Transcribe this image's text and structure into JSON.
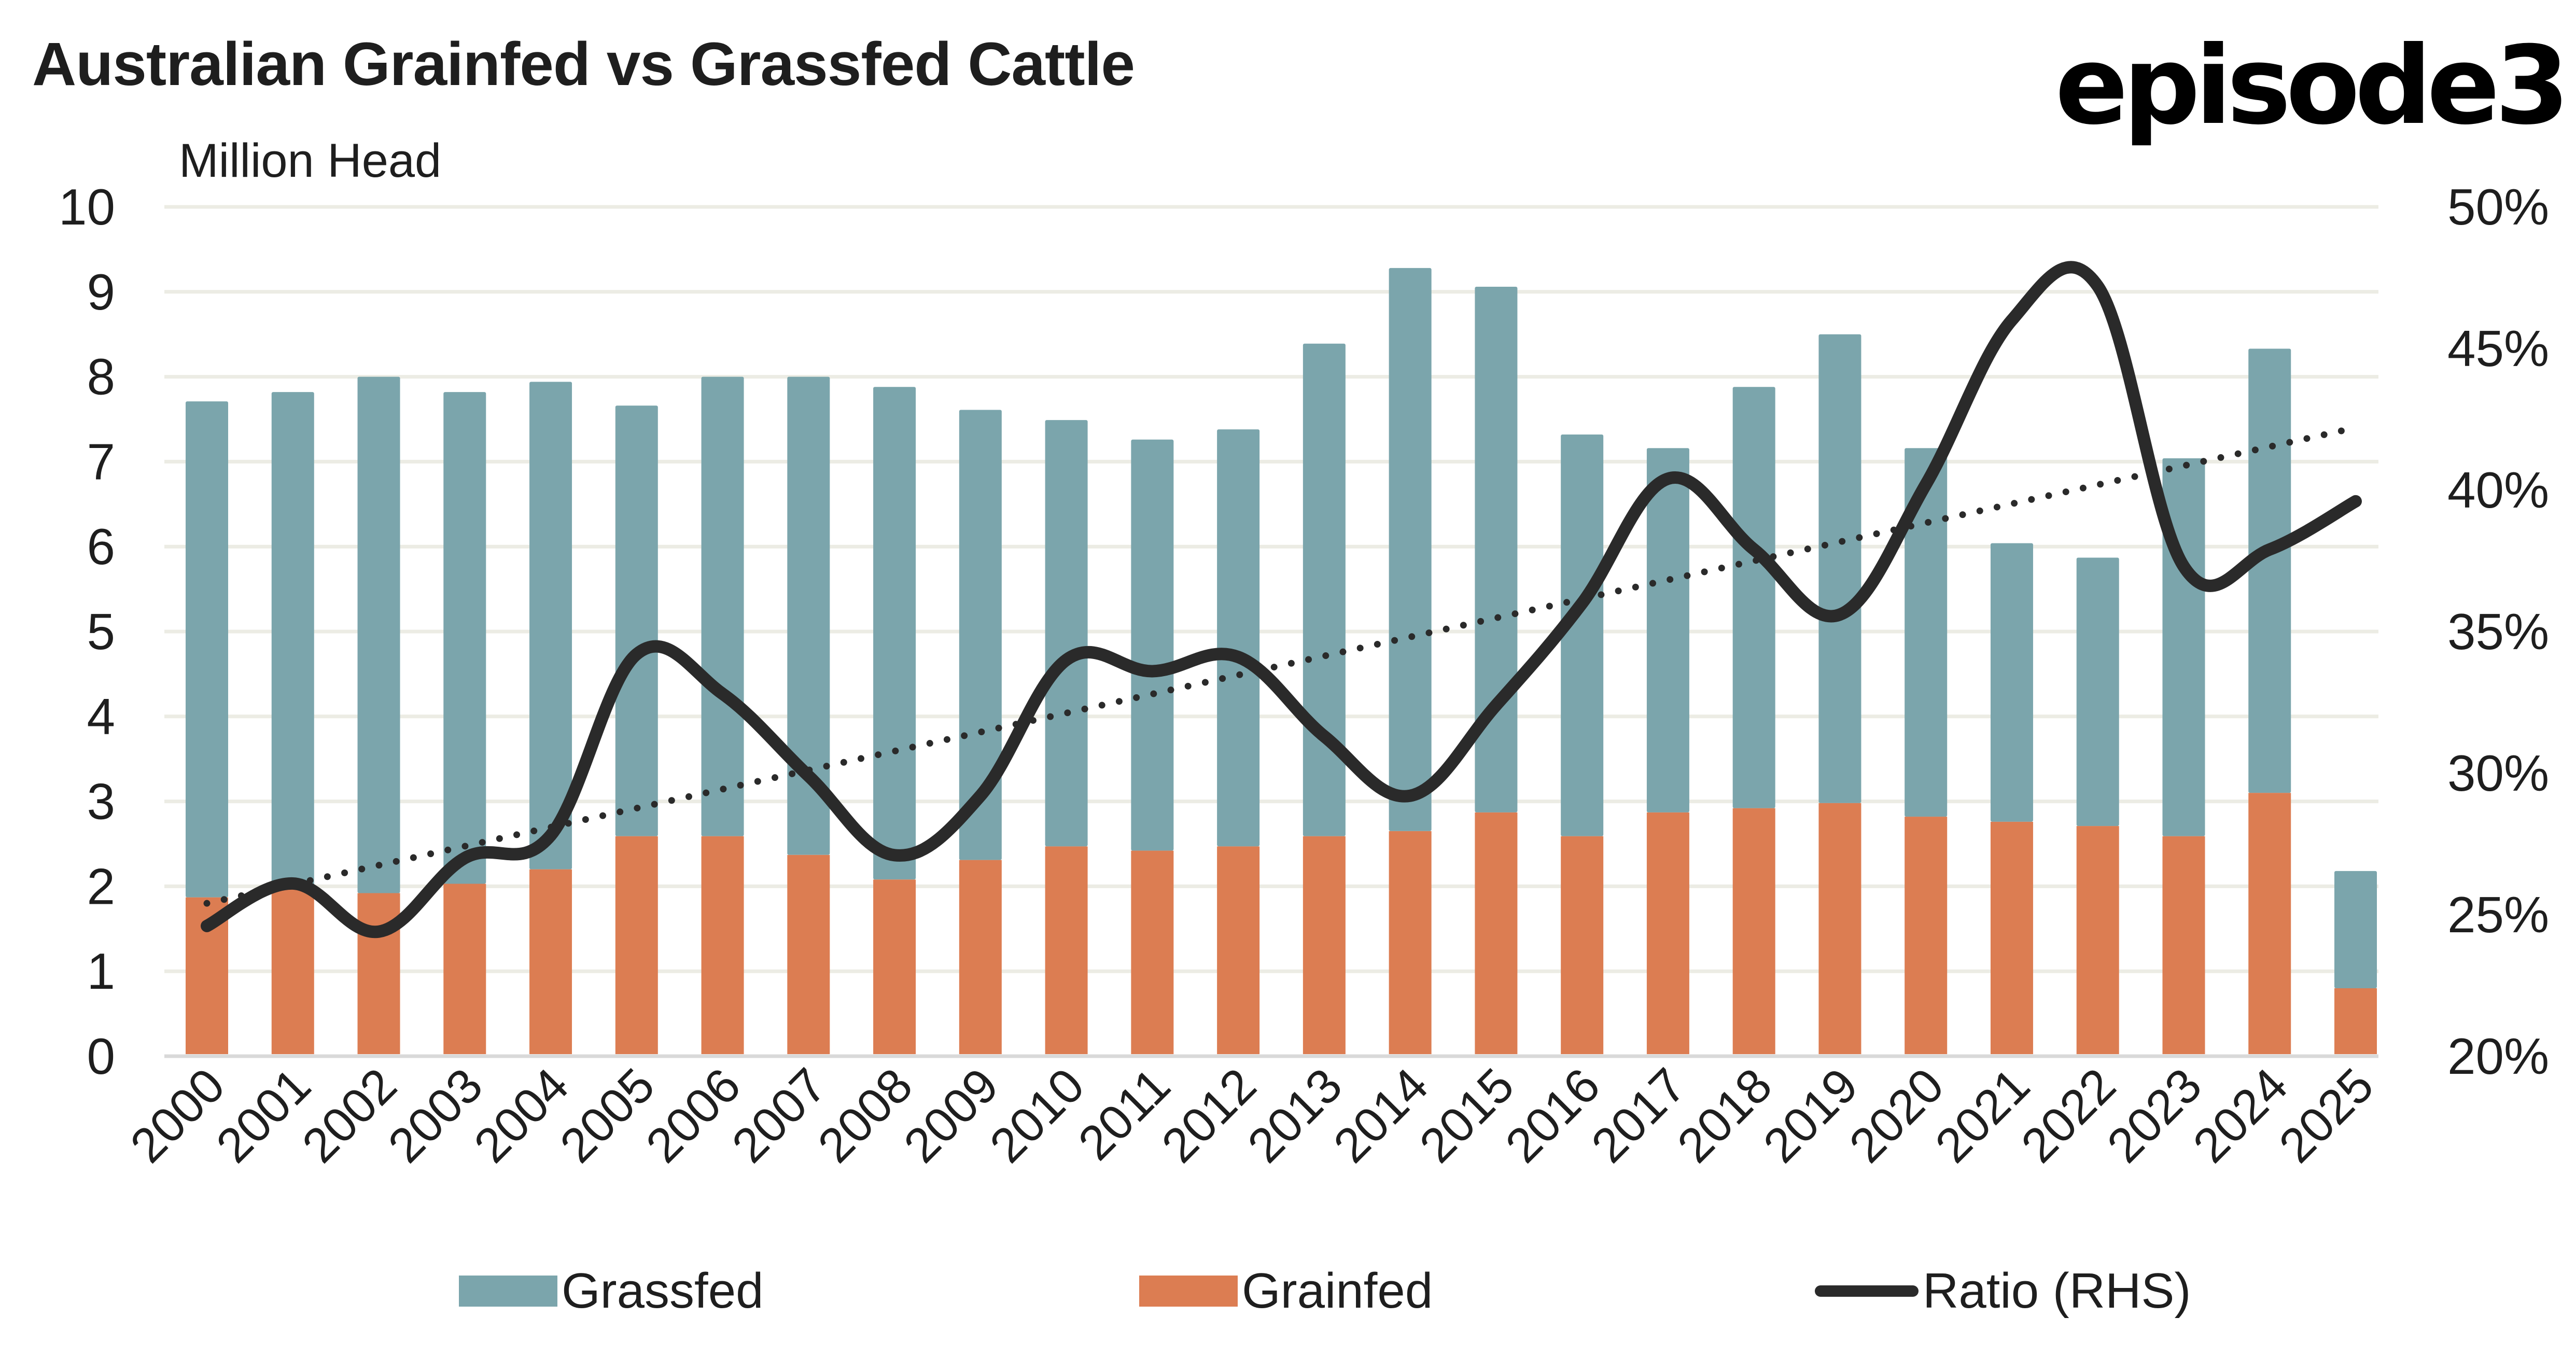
{
  "header": {
    "title": "Australian Grainfed vs Grassfed Cattle",
    "logo": "episode3",
    "unit_label": "Million Head"
  },
  "legend": {
    "grassfed": "Grassfed",
    "grainfed": "Grainfed",
    "ratio": "Ratio (RHS)"
  },
  "colors": {
    "grassfed": "#7BA5AC",
    "grainfed": "#DC7D52",
    "ratio": "#2A2A2A",
    "trend": "#2A2A2A",
    "grid": "#ECECE4",
    "axis": "#D9D9D9"
  },
  "chart_data": {
    "type": "bar",
    "subtype": "stacked-bar-with-line-secondary-axis",
    "title": "Australian Grainfed vs Grassfed Cattle",
    "xlabel": "",
    "ylabel": "Million Head",
    "y2label": "Ratio (RHS)",
    "ylim": [
      0,
      10
    ],
    "y2lim": [
      20,
      50
    ],
    "yticks": [
      "0",
      "1",
      "2",
      "3",
      "4",
      "5",
      "6",
      "7",
      "8",
      "9",
      "10"
    ],
    "y2ticks": [
      "20%",
      "25%",
      "30%",
      "35%",
      "40%",
      "45%",
      "50%"
    ],
    "grid": true,
    "legend_position": "bottom",
    "categories": [
      "2000",
      "2001",
      "2002",
      "2003",
      "2004",
      "2005",
      "2006",
      "2007",
      "2008",
      "2009",
      "2010",
      "2011",
      "2012",
      "2013",
      "2014",
      "2015",
      "2016",
      "2017",
      "2018",
      "2019",
      "2020",
      "2021",
      "2022",
      "2023",
      "2024",
      "2025"
    ],
    "series": [
      {
        "name": "Grainfed",
        "type": "bar",
        "axis": "left",
        "values": [
          1.87,
          1.98,
          1.92,
          2.03,
          2.2,
          2.59,
          2.59,
          2.37,
          2.08,
          2.31,
          2.47,
          2.42,
          2.47,
          2.59,
          2.65,
          2.87,
          2.59,
          2.87,
          2.92,
          2.98,
          2.82,
          2.76,
          2.71,
          2.59,
          3.1,
          0.8
        ]
      },
      {
        "name": "Grassfed",
        "type": "bar",
        "axis": "left",
        "stack_totals": [
          7.71,
          7.82,
          8.0,
          7.82,
          7.94,
          7.66,
          8.0,
          8.0,
          7.88,
          7.61,
          7.49,
          7.26,
          7.38,
          8.39,
          9.28,
          9.06,
          7.32,
          7.16,
          7.88,
          8.5,
          7.16,
          6.04,
          5.87,
          7.04,
          8.33,
          2.18
        ],
        "values": [
          5.84,
          5.84,
          6.08,
          5.79,
          5.74,
          5.07,
          5.41,
          5.63,
          5.8,
          5.3,
          5.02,
          4.84,
          4.91,
          5.8,
          6.63,
          6.19,
          4.73,
          4.29,
          4.96,
          5.52,
          4.34,
          3.28,
          3.16,
          4.45,
          5.23,
          1.38
        ]
      },
      {
        "name": "Ratio (RHS)",
        "type": "line",
        "axis": "right",
        "unit": "%",
        "smooth": true,
        "values": [
          24.6,
          26.1,
          24.4,
          27.0,
          27.8,
          34.2,
          32.8,
          29.9,
          27.1,
          29.2,
          34.0,
          33.6,
          34.1,
          31.3,
          29.2,
          32.4,
          36.0,
          40.4,
          37.9,
          35.6,
          40.2,
          46.0,
          47.2,
          37.3,
          37.9,
          39.6
        ]
      },
      {
        "name": "Ratio trend",
        "type": "line",
        "axis": "right",
        "style": "dotted",
        "linear_trend": true,
        "start": 25.4,
        "end": 42.2
      }
    ]
  }
}
